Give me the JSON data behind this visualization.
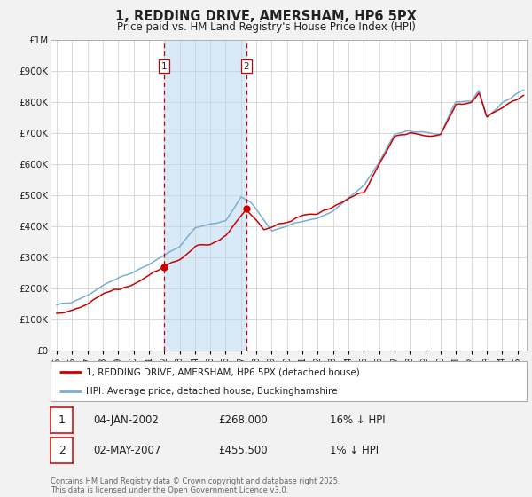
{
  "title": "1, REDDING DRIVE, AMERSHAM, HP6 5PX",
  "subtitle": "Price paid vs. HM Land Registry's House Price Index (HPI)",
  "background_color": "#f2f2f2",
  "plot_bg_color": "#ffffff",
  "grid_color": "#cccccc",
  "red_line_color": "#cc0000",
  "blue_line_color": "#7aadd4",
  "shade_color": "#d8eaf8",
  "vline_color": "#cc0000",
  "marker1_date_x": 2002.01,
  "marker1_y": 268000,
  "marker2_date_x": 2007.34,
  "marker2_y": 455500,
  "legend_label_red": "1, REDDING DRIVE, AMERSHAM, HP6 5PX (detached house)",
  "legend_label_blue": "HPI: Average price, detached house, Buckinghamshire",
  "table_rows": [
    {
      "num": "1",
      "date": "04-JAN-2002",
      "price": "£268,000",
      "hpi": "16% ↓ HPI"
    },
    {
      "num": "2",
      "date": "02-MAY-2007",
      "price": "£455,500",
      "hpi": "1% ↓ HPI"
    }
  ],
  "footer": "Contains HM Land Registry data © Crown copyright and database right 2025.\nThis data is licensed under the Open Government Licence v3.0.",
  "ylim": [
    0,
    1000000
  ],
  "xlim_start": 1994.6,
  "xlim_end": 2025.6,
  "hpi_keypoints_t": [
    1995,
    1996,
    1997,
    1998,
    1999,
    2000,
    2001,
    2002,
    2003,
    2004,
    2005,
    2006,
    2007,
    2007.6,
    2008.5,
    2009,
    2010,
    2011,
    2012,
    2013,
    2014,
    2015,
    2016,
    2017,
    2018,
    2019,
    2020,
    2021,
    2022,
    2022.5,
    2023,
    2024,
    2025.4
  ],
  "hpi_keypoints_v": [
    145000,
    158000,
    178000,
    210000,
    232000,
    252000,
    278000,
    305000,
    335000,
    395000,
    405000,
    415000,
    495000,
    475000,
    420000,
    385000,
    400000,
    418000,
    425000,
    448000,
    488000,
    530000,
    608000,
    695000,
    705000,
    702000,
    695000,
    800000,
    805000,
    840000,
    750000,
    795000,
    840000
  ],
  "red_keypoints_t": [
    1995,
    1996,
    1997,
    1998,
    1999,
    2000,
    2001,
    2002.01,
    2003,
    2004,
    2005,
    2006,
    2007.34,
    2007.7,
    2008.5,
    2009,
    2010,
    2011,
    2012,
    2013,
    2014,
    2015,
    2016,
    2017,
    2018,
    2019,
    2020,
    2021,
    2022,
    2022.5,
    2023,
    2024,
    2025.4
  ],
  "red_keypoints_v": [
    118000,
    130000,
    152000,
    182000,
    198000,
    210000,
    242000,
    268000,
    292000,
    335000,
    342000,
    368000,
    455500,
    435000,
    390000,
    398000,
    415000,
    432000,
    440000,
    462000,
    488000,
    508000,
    598000,
    688000,
    698000,
    686000,
    692000,
    792000,
    798000,
    830000,
    748000,
    785000,
    820000
  ]
}
